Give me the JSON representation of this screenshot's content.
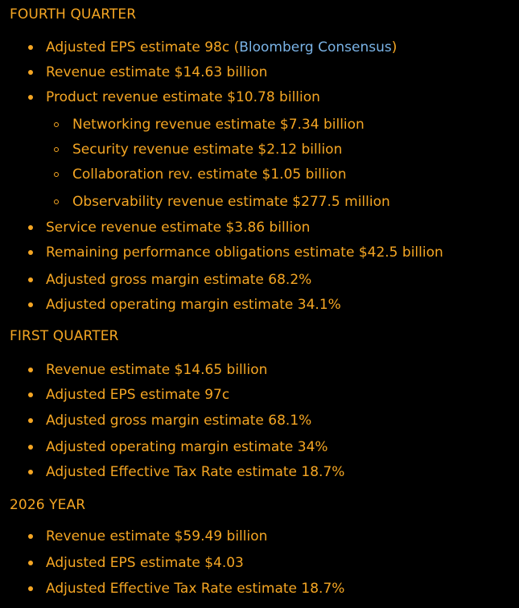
{
  "sections": [
    {
      "heading": "FOURTH QUARTER",
      "items": [
        {
          "pre": "Adjusted EPS estimate 98c (",
          "link": "Bloomberg Consensus",
          "post": ")"
        },
        {
          "text": "Revenue estimate $14.63 billion"
        },
        {
          "text": "Product revenue estimate $10.78 billion"
        },
        {
          "text": "Networking revenue estimate $7.34 billion"
        },
        {
          "text": "Security revenue estimate $2.12 billion"
        },
        {
          "text": "Collaboration rev. estimate $1.05 billion"
        },
        {
          "text": "Observability revenue estimate $277.5 million"
        },
        {
          "text": "Service revenue estimate $3.86 billion"
        },
        {
          "text": "Remaining performance obligations estimate $42.5 billion"
        },
        {
          "text": "Adjusted gross margin estimate 68.2%"
        },
        {
          "text": "Adjusted operating margin estimate 34.1%"
        }
      ]
    },
    {
      "heading": "FIRST QUARTER",
      "items": [
        {
          "text": "Revenue estimate $14.65 billion"
        },
        {
          "text": "Adjusted EPS estimate 97c"
        },
        {
          "text": "Adjusted gross margin estimate 68.1%"
        },
        {
          "text": "Adjusted operating margin estimate 34%"
        },
        {
          "text": "Adjusted Effective Tax Rate estimate 18.7%"
        }
      ]
    },
    {
      "heading": "2026 YEAR",
      "items": [
        {
          "text": "Revenue estimate $59.49 billion"
        },
        {
          "text": "Adjusted EPS estimate $4.03"
        },
        {
          "text": "Adjusted Effective Tax Rate estimate 18.7%"
        }
      ]
    }
  ],
  "colors": {
    "text": "#f5a623",
    "link": "#7ab3e6",
    "background": "#000000"
  }
}
